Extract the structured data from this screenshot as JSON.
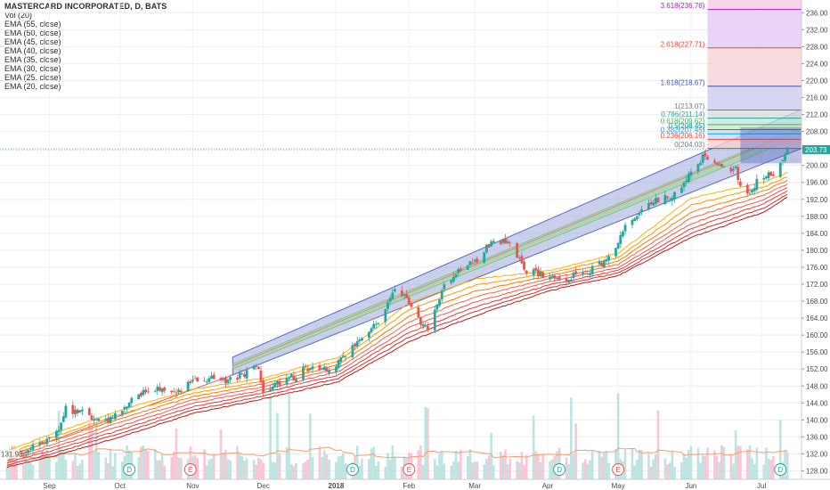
{
  "legend": {
    "title": "MASTERCARD INCORPORATED, D, BATS",
    "items": [
      "Vol (20)",
      "EMA (55, close)",
      "EMA (50, close)",
      "EMA (45, close)",
      "EMA (40, close)",
      "EMA (35, close)",
      "EMA (30, close)",
      "EMA (25, close)",
      "EMA (20, close)"
    ]
  },
  "chart_data": {
    "type": "candlestick",
    "symbol": "MASTERCARD INCORPORATED",
    "interval": "D",
    "exchange": "BATS",
    "last_price_label": "203.73",
    "last_price": 203.73,
    "y_axis": {
      "ticks": [
        "236.00",
        "232.00",
        "228.00",
        "224.00",
        "220.00",
        "216.00",
        "212.00",
        "208.00",
        "204.00",
        "200.00",
        "196.00",
        "192.00",
        "188.00",
        "184.00",
        "180.00",
        "176.00",
        "172.00",
        "168.00",
        "164.00",
        "160.00",
        "156.00",
        "152.00",
        "148.00",
        "144.00",
        "140.00",
        "136.00",
        "132.00",
        "128.00"
      ],
      "range": [
        126,
        239
      ]
    },
    "x_axis": {
      "ticks": [
        "Sep",
        "Oct",
        "Nov",
        "Dec",
        "2018",
        "Feb",
        "Mar",
        "Apr",
        "May",
        "Jun",
        "Jul"
      ],
      "range": [
        "2017-08-11",
        "2018-07-18"
      ]
    },
    "left_price_label": "131.98",
    "price_path": [
      [
        "2017-08-14",
        131.6
      ],
      [
        "2017-08-28",
        134.0
      ],
      [
        "2017-09-05",
        137.4
      ],
      [
        "2017-09-08",
        142.5
      ],
      [
        "2017-09-15",
        141.6
      ],
      [
        "2017-09-22",
        140.0
      ],
      [
        "2017-09-26",
        139.5
      ],
      [
        "2017-10-03",
        143.5
      ],
      [
        "2017-10-10",
        146.2
      ],
      [
        "2017-10-17",
        147.5
      ],
      [
        "2017-10-24",
        146.0
      ],
      [
        "2017-10-30",
        148.8
      ],
      [
        "2017-11-07",
        149.6
      ],
      [
        "2017-11-14",
        149.2
      ],
      [
        "2017-11-21",
        150.4
      ],
      [
        "2017-11-28",
        152.6
      ],
      [
        "2017-11-29",
        151.6
      ],
      [
        "2017-12-01",
        145.8
      ],
      [
        "2017-12-07",
        148.3
      ],
      [
        "2017-12-14",
        150.2
      ],
      [
        "2017-12-21",
        152.6
      ],
      [
        "2017-12-28",
        151.5
      ],
      [
        "2018-01-05",
        155.2
      ],
      [
        "2018-01-12",
        160.0
      ],
      [
        "2018-01-19",
        163.5
      ],
      [
        "2018-01-26",
        171.0
      ],
      [
        "2018-02-02",
        167.5
      ],
      [
        "2018-02-06",
        163.0
      ],
      [
        "2018-02-09",
        161.5
      ],
      [
        "2018-02-16",
        172.0
      ],
      [
        "2018-02-23",
        175.5
      ],
      [
        "2018-03-02",
        177.8
      ],
      [
        "2018-03-09",
        182.5
      ],
      [
        "2018-03-16",
        182.0
      ],
      [
        "2018-03-23",
        175.0
      ],
      [
        "2018-03-29",
        174.5
      ],
      [
        "2018-04-06",
        172.5
      ],
      [
        "2018-04-13",
        174.5
      ],
      [
        "2018-04-20",
        175.5
      ],
      [
        "2018-04-27",
        178.0
      ],
      [
        "2018-05-04",
        186.0
      ],
      [
        "2018-05-11",
        190.0
      ],
      [
        "2018-05-18",
        192.0
      ],
      [
        "2018-05-25",
        193.0
      ],
      [
        "2018-06-01",
        199.0
      ],
      [
        "2018-06-06",
        202.0
      ],
      [
        "2018-06-13",
        200.0
      ],
      [
        "2018-06-20",
        199.0
      ],
      [
        "2018-06-22",
        195.0
      ],
      [
        "2018-06-26",
        193.5
      ],
      [
        "2018-06-29",
        196.5
      ],
      [
        "2018-07-06",
        198.0
      ],
      [
        "2018-07-10",
        201.0
      ],
      [
        "2018-07-12",
        203.73
      ]
    ],
    "candle_colors": {
      "up": "#26a69a",
      "down": "#ef5350"
    },
    "ema_series": [
      {
        "name": "EMA (55, close)",
        "color": "#b71c1c",
        "anchors": [
          [
            "2017-08-11",
            128.5
          ],
          [
            "2017-09-01",
            131.2
          ],
          [
            "2017-10-01",
            136.0
          ],
          [
            "2017-11-01",
            141.5
          ],
          [
            "2017-12-01",
            145.0
          ],
          [
            "2018-01-02",
            149.0
          ],
          [
            "2018-02-01",
            158.5
          ],
          [
            "2018-03-01",
            164.5
          ],
          [
            "2018-04-02",
            170.5
          ],
          [
            "2018-05-01",
            174.0
          ],
          [
            "2018-06-01",
            183.0
          ],
          [
            "2018-07-02",
            189.0
          ],
          [
            "2018-07-12",
            192.5
          ]
        ]
      },
      {
        "name": "EMA (50, close)",
        "color": "#d32f2f",
        "anchors": [
          [
            "2017-08-11",
            129.0
          ],
          [
            "2017-09-01",
            131.9
          ],
          [
            "2017-10-01",
            136.8
          ],
          [
            "2017-11-01",
            142.3
          ],
          [
            "2017-12-01",
            145.7
          ],
          [
            "2018-01-02",
            149.8
          ],
          [
            "2018-02-01",
            159.5
          ],
          [
            "2018-03-01",
            165.5
          ],
          [
            "2018-04-02",
            171.2
          ],
          [
            "2018-05-01",
            174.6
          ],
          [
            "2018-06-01",
            184.0
          ],
          [
            "2018-07-02",
            190.0
          ],
          [
            "2018-07-12",
            193.2
          ]
        ]
      },
      {
        "name": "EMA (45, close)",
        "color": "#e53935",
        "anchors": [
          [
            "2017-08-11",
            129.5
          ],
          [
            "2017-09-01",
            132.6
          ],
          [
            "2017-10-01",
            137.6
          ],
          [
            "2017-11-01",
            143.1
          ],
          [
            "2017-12-01",
            146.4
          ],
          [
            "2018-01-02",
            150.6
          ],
          [
            "2018-02-01",
            160.6
          ],
          [
            "2018-03-01",
            166.6
          ],
          [
            "2018-04-02",
            171.9
          ],
          [
            "2018-05-01",
            175.2
          ],
          [
            "2018-06-01",
            185.1
          ],
          [
            "2018-07-02",
            191.0
          ],
          [
            "2018-07-12",
            194.0
          ]
        ]
      },
      {
        "name": "EMA (40, close)",
        "color": "#ef5350",
        "anchors": [
          [
            "2017-08-11",
            130.0
          ],
          [
            "2017-09-01",
            133.3
          ],
          [
            "2017-10-01",
            138.5
          ],
          [
            "2017-11-01",
            143.9
          ],
          [
            "2017-12-01",
            147.1
          ],
          [
            "2018-01-02",
            151.4
          ],
          [
            "2018-02-01",
            161.8
          ],
          [
            "2018-03-01",
            167.8
          ],
          [
            "2018-04-02",
            172.6
          ],
          [
            "2018-05-01",
            175.9
          ],
          [
            "2018-06-01",
            186.3
          ],
          [
            "2018-07-02",
            192.0
          ],
          [
            "2018-07-12",
            194.8
          ]
        ]
      },
      {
        "name": "EMA (35, close)",
        "color": "#f4664a",
        "anchors": [
          [
            "2017-08-11",
            130.5
          ],
          [
            "2017-09-01",
            134.0
          ],
          [
            "2017-10-01",
            139.4
          ],
          [
            "2017-11-01",
            144.7
          ],
          [
            "2017-12-01",
            147.8
          ],
          [
            "2018-01-02",
            152.2
          ],
          [
            "2018-02-01",
            163.1
          ],
          [
            "2018-03-01",
            169.0
          ],
          [
            "2018-04-02",
            173.3
          ],
          [
            "2018-05-01",
            176.6
          ],
          [
            "2018-06-01",
            187.6
          ],
          [
            "2018-07-02",
            193.0
          ],
          [
            "2018-07-12",
            195.6
          ]
        ]
      },
      {
        "name": "EMA (30, close)",
        "color": "#f57c00",
        "anchors": [
          [
            "2017-08-11",
            131.0
          ],
          [
            "2017-09-01",
            134.8
          ],
          [
            "2017-10-01",
            140.3
          ],
          [
            "2017-11-01",
            145.5
          ],
          [
            "2017-12-01",
            148.5
          ],
          [
            "2018-01-02",
            153.0
          ],
          [
            "2018-02-01",
            164.5
          ],
          [
            "2018-03-01",
            170.3
          ],
          [
            "2018-04-02",
            174.0
          ],
          [
            "2018-05-01",
            177.4
          ],
          [
            "2018-06-01",
            189.0
          ],
          [
            "2018-07-02",
            194.0
          ],
          [
            "2018-07-12",
            196.4
          ]
        ]
      },
      {
        "name": "EMA (25, close)",
        "color": "#ff9800",
        "anchors": [
          [
            "2017-08-11",
            131.5
          ],
          [
            "2017-09-01",
            135.6
          ],
          [
            "2017-10-01",
            141.3
          ],
          [
            "2017-11-01",
            146.3
          ],
          [
            "2017-12-01",
            149.2
          ],
          [
            "2018-01-02",
            153.9
          ],
          [
            "2018-02-01",
            166.0
          ],
          [
            "2018-03-01",
            171.7
          ],
          [
            "2018-04-02",
            174.6
          ],
          [
            "2018-05-01",
            178.3
          ],
          [
            "2018-06-01",
            190.6
          ],
          [
            "2018-07-02",
            195.0
          ],
          [
            "2018-07-12",
            197.3
          ]
        ]
      },
      {
        "name": "EMA (20, close)",
        "color": "#ffb300",
        "anchors": [
          [
            "2017-08-11",
            132.0
          ],
          [
            "2017-09-01",
            136.5
          ],
          [
            "2017-10-01",
            142.3
          ],
          [
            "2017-11-01",
            147.2
          ],
          [
            "2017-12-01",
            149.9
          ],
          [
            "2018-01-02",
            154.8
          ],
          [
            "2018-02-01",
            167.6
          ],
          [
            "2018-03-01",
            173.2
          ],
          [
            "2018-04-02",
            175.2
          ],
          [
            "2018-05-01",
            179.3
          ],
          [
            "2018-06-01",
            192.3
          ],
          [
            "2018-07-02",
            196.0
          ],
          [
            "2018-07-12",
            198.3
          ]
        ]
      }
    ],
    "volume_ma": {
      "name": "Vol (20)",
      "color": "#f0a070"
    },
    "trend_channel": {
      "start_date": "2017-11-18",
      "end_date": "2018-07-18",
      "upper_start": 154.8,
      "upper_end": 213.2,
      "lower_start": 150.6,
      "lower_end": 204.0,
      "inner_upper_start": 153.2,
      "inner_upper_end": 209.0,
      "inner_lower_start": 152.0,
      "inner_lower_end": 207.0,
      "outer_fill": "#9fa8da",
      "inner_fill": "#a5d6a7"
    },
    "fibonacci_extension": {
      "start_date": "2018-06-08",
      "levels": [
        {
          "label": "3.618(236.76)",
          "price": 236.76,
          "color": "#9c27b0"
        },
        {
          "label": "2.618(227.71)",
          "price": 227.71,
          "color": "#f44336"
        },
        {
          "label": "1.618(218.67)",
          "price": 218.67,
          "color": "#3f51b5"
        },
        {
          "label": "1(213.07)",
          "price": 213.07,
          "color": "#787b86"
        },
        {
          "label": "0.786(211.14)",
          "price": 211.14,
          "color": "#26a69a"
        },
        {
          "label": "0.618(209.62)",
          "price": 209.62,
          "color": "#4caf50"
        },
        {
          "label": "0.5(208.45)",
          "price": 208.45,
          "color": "#009688"
        },
        {
          "label": "0.382(207.45)",
          "price": 207.45,
          "color": "#2196f3"
        },
        {
          "label": "0.236(206.16)",
          "price": 206.16,
          "color": "#f44336"
        },
        {
          "label": "0(204.03)",
          "price": 204.03,
          "color": "#787b86"
        }
      ]
    },
    "events": [
      {
        "date": "2017-10-05",
        "letter": "D"
      },
      {
        "date": "2017-10-31",
        "letter": "E"
      },
      {
        "date": "2018-01-08",
        "letter": "D"
      },
      {
        "date": "2018-02-01",
        "letter": "E"
      },
      {
        "date": "2018-04-06",
        "letter": "D"
      },
      {
        "date": "2018-05-01",
        "letter": "E"
      },
      {
        "date": "2018-07-09",
        "letter": "D"
      }
    ]
  }
}
